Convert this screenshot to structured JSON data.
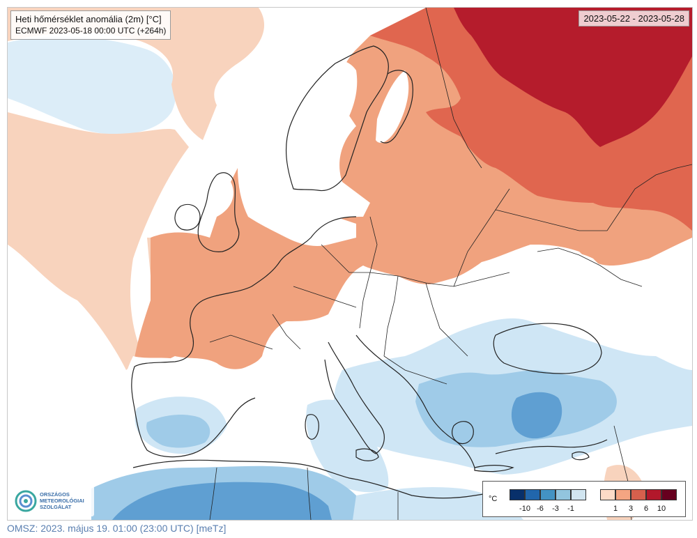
{
  "map": {
    "title": "Heti hőmérséklet anomália (2m) [°C]",
    "model_run": "ECMWF 2023-05-18 00:00 UTC (+264h)",
    "valid_period": "2023-05-22 - 2023-05-28",
    "colors": {
      "sea_ice": "#e6f3fa",
      "neutral": "#ffffff",
      "cold_1": "#cfe6f5",
      "cold_3": "#9fcbe8",
      "cold_6": "#5f9fd2",
      "cold_10": "#2c6fb4",
      "warm_1": "#f8d3bd",
      "warm_3": "#f0a27e",
      "warm_6": "#e0664f",
      "warm_10": "#b51c2c",
      "coast": "#222222"
    }
  },
  "legend": {
    "unit": "°C",
    "cold_colors": [
      "#08306b",
      "#2166ac",
      "#4393c3",
      "#92c5de",
      "#d1e5f0"
    ],
    "warm_colors": [
      "#fddbc7",
      "#f4a582",
      "#d6604d",
      "#b2182b",
      "#67001f"
    ],
    "cold_ticks": [
      "-10",
      "-6",
      "-3",
      "-1"
    ],
    "warm_ticks": [
      "1",
      "3",
      "6",
      "10"
    ]
  },
  "logo": {
    "lines": [
      "ORSZÁGOS",
      "METEOROLÓGIAI",
      "SZOLGÁLAT"
    ]
  },
  "footer": {
    "text": "OMSZ: 2023. május 19. 01:00 (23:00 UTC) [meTz]"
  }
}
